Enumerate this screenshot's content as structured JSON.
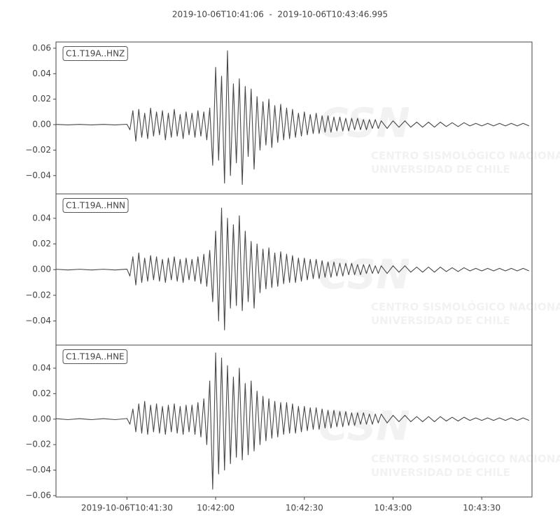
{
  "title": "2019-10-06T10:41:06  -  2019-10-06T10:43:46.995",
  "watermark": {
    "logo": "CSN",
    "line1": "CENTRO SISMOLÓGICO NACIONAL",
    "line2": "UNIVERSIDAD DE CHILE"
  },
  "chart_data": [
    {
      "type": "line",
      "label": "C1.T19A..HNZ",
      "color": "#474747",
      "xlim": [
        0,
        160.995
      ],
      "ylim": [
        -0.0544,
        0.0649
      ],
      "yticks": [
        {
          "value": -0.04,
          "label": "−0.04"
        },
        {
          "value": -0.02,
          "label": "−0.02"
        },
        {
          "value": 0,
          "label": "0.00"
        },
        0.02,
        0.04,
        0.06
      ],
      "x": [
        0,
        4,
        8,
        12,
        16,
        20,
        24,
        25,
        26,
        27,
        28,
        29,
        30,
        31,
        32,
        33,
        34,
        35,
        36,
        37,
        38,
        39,
        40,
        41,
        42,
        43,
        44,
        45,
        46,
        47,
        48,
        49,
        50,
        51,
        52,
        53,
        54,
        55,
        56,
        57,
        58,
        59,
        60,
        61,
        62,
        63,
        64,
        65,
        66,
        67,
        68,
        69,
        70,
        71,
        72,
        73,
        74,
        75,
        76,
        77,
        78,
        79,
        80,
        81,
        82,
        83,
        84,
        85,
        86,
        87,
        88,
        89,
        90,
        91,
        92,
        93,
        94,
        95,
        96,
        97,
        98,
        99,
        100,
        101,
        102,
        103,
        104,
        105,
        106,
        107,
        108,
        109,
        110,
        112,
        114,
        116,
        118,
        120,
        122,
        124,
        126,
        128,
        130,
        132,
        134,
        136,
        138,
        140,
        142,
        144,
        146,
        148,
        150,
        152,
        154,
        156,
        158,
        160
      ],
      "values": [
        0.0002,
        -0.0002,
        0.0002,
        -0.0002,
        0.0002,
        -0.0002,
        0.0003,
        -0.004,
        0.011,
        -0.013,
        0.012,
        -0.01,
        0.009,
        -0.011,
        0.013,
        -0.009,
        0.01,
        -0.008,
        0.011,
        -0.012,
        0.009,
        -0.01,
        0.012,
        -0.009,
        0.008,
        -0.011,
        0.01,
        -0.008,
        0.009,
        -0.01,
        0.011,
        -0.009,
        0.01,
        -0.012,
        0.013,
        -0.032,
        0.045,
        -0.028,
        0.038,
        -0.046,
        0.058,
        -0.04,
        0.032,
        -0.03,
        0.036,
        -0.047,
        0.03,
        -0.025,
        0.028,
        -0.035,
        0.022,
        -0.02,
        0.018,
        -0.016,
        0.02,
        -0.018,
        0.015,
        -0.014,
        0.016,
        -0.012,
        0.013,
        -0.011,
        0.012,
        -0.01,
        0.009,
        -0.009,
        0.01,
        -0.008,
        0.008,
        -0.007,
        0.009,
        -0.007,
        0.007,
        -0.006,
        0.007,
        -0.006,
        0.006,
        -0.005,
        0.006,
        -0.005,
        0.005,
        -0.005,
        0.005,
        -0.004,
        0.005,
        -0.004,
        0.004,
        -0.004,
        0.004,
        -0.003,
        0.004,
        -0.003,
        0.003,
        -0.003,
        0.003,
        -0.002,
        0.003,
        -0.002,
        0.002,
        -0.002,
        0.002,
        -0.002,
        0.002,
        -0.0015,
        0.0015,
        -0.0015,
        0.0015,
        -0.001,
        0.001,
        -0.001,
        0.001,
        -0.001,
        0.001,
        -0.001,
        0.001,
        -0.001,
        0.001,
        -0.001
      ]
    },
    {
      "type": "line",
      "label": "C1.T19A..HNN",
      "color": "#474747",
      "xlim": [
        0,
        160.995
      ],
      "ylim": [
        -0.0588,
        0.059
      ],
      "yticks": [
        {
          "value": -0.04,
          "label": "−0.04"
        },
        {
          "value": -0.02,
          "label": "−0.02"
        },
        {
          "value": 0,
          "label": "0.00"
        },
        0.02,
        0.04
      ],
      "x": [
        0,
        4,
        8,
        12,
        16,
        20,
        24,
        25,
        26,
        27,
        28,
        29,
        30,
        31,
        32,
        33,
        34,
        35,
        36,
        37,
        38,
        39,
        40,
        41,
        42,
        43,
        44,
        45,
        46,
        47,
        48,
        49,
        50,
        51,
        52,
        53,
        54,
        55,
        56,
        57,
        58,
        59,
        60,
        61,
        62,
        63,
        64,
        65,
        66,
        67,
        68,
        69,
        70,
        71,
        72,
        73,
        74,
        75,
        76,
        77,
        78,
        79,
        80,
        81,
        82,
        83,
        84,
        85,
        86,
        87,
        88,
        89,
        90,
        91,
        92,
        93,
        94,
        95,
        96,
        97,
        98,
        99,
        100,
        101,
        102,
        103,
        104,
        105,
        106,
        107,
        108,
        109,
        110,
        112,
        114,
        116,
        118,
        120,
        122,
        124,
        126,
        128,
        130,
        132,
        134,
        136,
        138,
        140,
        142,
        144,
        146,
        148,
        150,
        152,
        154,
        156,
        158,
        160
      ],
      "values": [
        0.0003,
        -0.0003,
        0.0003,
        -0.0003,
        0.0003,
        -0.0003,
        0.0004,
        -0.005,
        0.01,
        -0.012,
        0.013,
        -0.01,
        0.009,
        -0.009,
        0.011,
        -0.008,
        0.01,
        -0.009,
        0.008,
        -0.01,
        0.009,
        -0.008,
        0.01,
        -0.009,
        0.008,
        -0.01,
        0.009,
        -0.008,
        0.008,
        -0.009,
        0.01,
        -0.011,
        0.012,
        -0.013,
        0.015,
        -0.025,
        0.03,
        -0.04,
        0.048,
        -0.047,
        0.04,
        -0.03,
        0.035,
        -0.028,
        0.042,
        -0.032,
        0.03,
        -0.025,
        0.022,
        -0.03,
        0.02,
        -0.018,
        0.016,
        -0.015,
        0.017,
        -0.014,
        0.013,
        -0.013,
        0.014,
        -0.011,
        0.012,
        -0.01,
        0.011,
        -0.01,
        0.009,
        -0.009,
        0.009,
        -0.008,
        0.008,
        -0.007,
        0.008,
        -0.007,
        0.007,
        -0.006,
        0.006,
        -0.006,
        0.006,
        -0.005,
        0.005,
        -0.005,
        0.005,
        -0.004,
        0.005,
        -0.004,
        0.004,
        -0.004,
        0.004,
        -0.003,
        0.004,
        -0.003,
        0.003,
        -0.003,
        0.003,
        -0.003,
        0.003,
        -0.002,
        0.003,
        -0.002,
        0.002,
        -0.002,
        0.002,
        -0.002,
        0.002,
        -0.0015,
        0.0015,
        -0.0015,
        0.0015,
        -0.001,
        0.001,
        -0.001,
        0.001,
        -0.001,
        0.001,
        -0.001,
        0.001,
        -0.001,
        0.001,
        -0.001
      ]
    },
    {
      "type": "line",
      "label": "C1.T19A..HNE",
      "color": "#474747",
      "xlim": [
        0,
        160.995
      ],
      "ylim": [
        -0.0611,
        0.0581
      ],
      "yticks": [
        {
          "value": -0.06,
          "label": "−0.06"
        },
        {
          "value": -0.04,
          "label": "−0.04"
        },
        {
          "value": -0.02,
          "label": "−0.02"
        },
        {
          "value": 0,
          "label": "0.00"
        },
        0.02,
        0.04
      ],
      "xticks": [
        {
          "value": 24,
          "label": "2019-10-06T10:41:30"
        },
        {
          "value": 54,
          "label": "10:42:00"
        },
        {
          "value": 84,
          "label": "10:42:30"
        },
        {
          "value": 114,
          "label": "10:43:00"
        },
        {
          "value": 144,
          "label": "10:43:30"
        }
      ],
      "x": [
        0,
        4,
        8,
        12,
        16,
        20,
        24,
        25,
        26,
        27,
        28,
        29,
        30,
        31,
        32,
        33,
        34,
        35,
        36,
        37,
        38,
        39,
        40,
        41,
        42,
        43,
        44,
        45,
        46,
        47,
        48,
        49,
        50,
        51,
        52,
        53,
        54,
        55,
        56,
        57,
        58,
        59,
        60,
        61,
        62,
        63,
        64,
        65,
        66,
        67,
        68,
        69,
        70,
        71,
        72,
        73,
        74,
        75,
        76,
        77,
        78,
        79,
        80,
        81,
        82,
        83,
        84,
        85,
        86,
        87,
        88,
        89,
        90,
        91,
        92,
        93,
        94,
        95,
        96,
        97,
        98,
        99,
        100,
        101,
        102,
        103,
        104,
        105,
        106,
        107,
        108,
        109,
        110,
        112,
        114,
        116,
        118,
        120,
        122,
        124,
        126,
        128,
        130,
        132,
        134,
        136,
        138,
        140,
        142,
        144,
        146,
        148,
        150,
        152,
        154,
        156,
        158,
        160
      ],
      "values": [
        0.0004,
        -0.0004,
        0.0004,
        -0.0004,
        0.0004,
        -0.0004,
        0.0005,
        -0.004,
        0.008,
        -0.01,
        0.012,
        -0.011,
        0.014,
        -0.012,
        0.011,
        -0.01,
        0.012,
        -0.011,
        0.01,
        -0.012,
        0.011,
        -0.01,
        0.012,
        -0.011,
        0.01,
        -0.012,
        0.011,
        -0.01,
        0.011,
        -0.012,
        0.013,
        -0.014,
        0.016,
        -0.02,
        0.03,
        -0.055,
        0.052,
        -0.043,
        0.048,
        -0.04,
        0.042,
        -0.035,
        0.033,
        -0.03,
        0.04,
        -0.032,
        0.028,
        -0.028,
        0.03,
        -0.025,
        0.022,
        -0.02,
        0.018,
        -0.017,
        0.016,
        -0.015,
        0.014,
        -0.014,
        0.013,
        -0.012,
        0.013,
        -0.011,
        0.012,
        -0.011,
        0.01,
        -0.01,
        0.01,
        -0.009,
        0.009,
        -0.008,
        0.009,
        -0.008,
        0.008,
        -0.007,
        0.007,
        -0.007,
        0.007,
        -0.006,
        0.006,
        -0.006,
        0.006,
        -0.005,
        0.005,
        -0.005,
        0.005,
        -0.004,
        0.005,
        -0.004,
        0.004,
        -0.004,
        0.004,
        -0.003,
        0.004,
        -0.003,
        0.003,
        -0.002,
        0.003,
        -0.002,
        0.002,
        -0.002,
        0.002,
        -0.002,
        0.002,
        -0.0015,
        0.0015,
        -0.0015,
        0.0015,
        -0.001,
        0.001,
        -0.001,
        0.001,
        -0.001,
        0.001,
        -0.001,
        0.001,
        -0.001,
        0.001,
        -0.001
      ]
    }
  ]
}
